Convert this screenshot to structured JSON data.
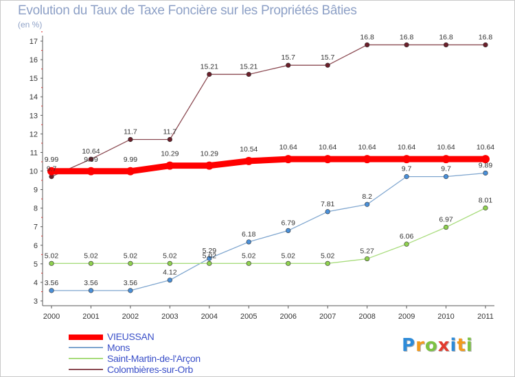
{
  "chart_data": {
    "type": "line",
    "title": "Evolution du Taux de Taxe Foncière sur les Propriétés Bâties",
    "unit_label": "(en %)",
    "x": [
      2000,
      2001,
      2002,
      2003,
      2004,
      2005,
      2006,
      2007,
      2008,
      2009,
      2010,
      2011
    ],
    "x_labels": [
      "2000",
      "2001",
      "2002",
      "2003",
      "2004",
      "2005",
      "2006",
      "2007",
      "2008",
      "2009",
      "2010",
      "2011"
    ],
    "ylim": [
      3,
      17
    ],
    "y_ticks": [
      3,
      4,
      5,
      6,
      7,
      8,
      9,
      10,
      11,
      12,
      13,
      14,
      15,
      16,
      17
    ],
    "grid": false,
    "series": [
      {
        "name": "VIEUSSAN",
        "color": "#ff0000",
        "values": [
          9.99,
          9.99,
          9.99,
          10.29,
          10.29,
          10.54,
          10.64,
          10.64,
          10.64,
          10.64,
          10.64,
          10.64
        ],
        "labels": [
          "9.99",
          "9.99",
          "9.99",
          "10.29",
          "10.29",
          "10.54",
          "10.64",
          "10.64",
          "10.64",
          "10.64",
          "10.64",
          "10.64"
        ]
      },
      {
        "name": "Mons",
        "color": "#7fa6cf",
        "marker": "#4a90d9",
        "values": [
          3.56,
          3.56,
          3.56,
          4.12,
          5.29,
          6.18,
          6.79,
          7.81,
          8.2,
          9.7,
          9.7,
          9.89
        ],
        "labels": [
          "3.56",
          "3.56",
          "3.56",
          "4.12",
          "5.29",
          "6.18",
          "6.79",
          "7.81",
          "8.2",
          "9.7",
          "9.7",
          "9.89"
        ]
      },
      {
        "name": "Saint-Martin-de-l'Arçon",
        "color": "#a8dc7c",
        "marker": "#8fd14f",
        "values": [
          5.02,
          5.02,
          5.02,
          5.02,
          5.02,
          5.02,
          5.02,
          5.02,
          5.27,
          6.06,
          6.97,
          8.01
        ],
        "labels": [
          "5.02",
          "5.02",
          "5.02",
          "5.02",
          "5.02",
          "5.02",
          "5.02",
          "5.02",
          "5.27",
          "6.06",
          "6.97",
          "8.01"
        ]
      },
      {
        "name": "Colombières-sur-Orb",
        "color": "#8b4a52",
        "marker": "#6b1f2a",
        "values": [
          9.7,
          10.64,
          11.7,
          11.7,
          15.21,
          15.21,
          15.7,
          15.7,
          16.8,
          16.8,
          16.8,
          16.8
        ],
        "labels": [
          "9.7",
          "10.64",
          "11.7",
          "11.7",
          "15.21",
          "15.21",
          "15.7",
          "15.7",
          "16.8",
          "16.8",
          "16.8",
          "16.8"
        ]
      }
    ]
  },
  "logo": {
    "letters": [
      "P",
      "r",
      "o",
      "x",
      "i",
      "t",
      "i"
    ],
    "colors": [
      "#2e8bd8",
      "#f39a1c",
      "#7cc242",
      "#e23b2e",
      "#2e8bd8",
      "#f39a1c",
      "#7cc242"
    ]
  }
}
